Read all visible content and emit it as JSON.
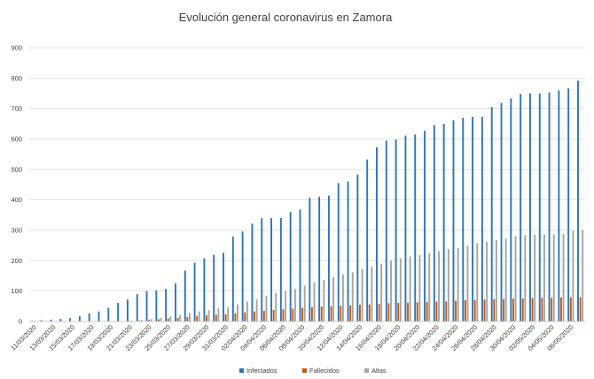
{
  "chart_data": {
    "type": "bar",
    "title": "Evolución general coronavirus en Zamora",
    "xlabel": "",
    "ylabel": "",
    "ylim": [
      0,
      900
    ],
    "yticks": [
      0,
      100,
      200,
      300,
      400,
      500,
      600,
      700,
      800,
      900
    ],
    "grid": true,
    "legend_position": "bottom",
    "categories": [
      "11/03/2020",
      "12/03/2020",
      "13/03/2020",
      "14/03/2020",
      "15/03/2020",
      "16/03/2020",
      "17/03/2020",
      "18/03/2020",
      "19/03/2020",
      "20/03/2020",
      "21/03/2020",
      "22/03/2020",
      "23/03/2020",
      "24/03/2020",
      "25/03/2020",
      "26/03/2020",
      "27/03/2020",
      "28/03/2020",
      "29/03/2020",
      "30/03/2020",
      "31/03/2020",
      "01/04/2020",
      "02/04/2020",
      "03/04/2020",
      "04/04/2020",
      "05/04/2020",
      "06/04/2020",
      "07/04/2020",
      "08/04/2020",
      "09/04/2020",
      "10/04/2020",
      "11/04/2020",
      "12/04/2020",
      "13/04/2020",
      "14/04/2020",
      "15/04/2020",
      "16/04/2020",
      "17/04/2020",
      "18/04/2020",
      "19/04/2020",
      "20/04/2020",
      "21/04/2020",
      "22/04/2020",
      "23/04/2020",
      "24/04/2020",
      "25/04/2020",
      "26/04/2020",
      "27/04/2020",
      "28/04/2020",
      "29/04/2020",
      "30/04/2020",
      "01/05/2020",
      "02/05/2020",
      "03/05/2020",
      "04/05/2020",
      "05/05/2020",
      "06/05/2020",
      "07/05/2020"
    ],
    "tick_labels": [
      "11/03/2020",
      "13/03/2020",
      "15/03/2020",
      "17/03/2020",
      "19/03/2020",
      "21/03/2020",
      "23/03/2020",
      "25/03/2020",
      "27/03/2020",
      "29/03/2020",
      "31/03/2020",
      "02/04/2020",
      "04/04/2020",
      "06/04/2020",
      "08/04/2020",
      "10/04/2020",
      "12/04/2020",
      "14/04/2020",
      "16/04/2020",
      "18/04/2020",
      "20/04/2020",
      "22/04/2020",
      "24/04/2020",
      "26/04/2020",
      "28/04/2020",
      "30/04/2020",
      "02/05/2020",
      "04/05/2020",
      "06/05/2020"
    ],
    "series": [
      {
        "name": "Infectados",
        "color": "#2e75b6",
        "values": [
          2,
          4,
          6,
          8,
          11,
          17,
          27,
          33,
          45,
          61,
          72,
          90,
          100,
          102,
          107,
          125,
          167,
          193,
          208,
          219,
          226,
          279,
          296,
          322,
          340,
          340,
          341,
          360,
          368,
          407,
          410,
          414,
          455,
          460,
          483,
          532,
          573,
          595,
          598,
          611,
          615,
          627,
          646,
          650,
          662,
          670,
          673,
          673,
          705,
          719,
          733,
          748,
          750,
          750,
          753,
          760,
          767,
          792
        ]
      },
      {
        "name": "Fallecidos",
        "color": "#c55a11",
        "values": [
          0,
          0,
          0,
          0,
          0,
          0,
          0,
          0,
          1,
          1,
          2,
          3,
          5,
          7,
          10,
          12,
          15,
          18,
          20,
          22,
          24,
          27,
          30,
          33,
          35,
          38,
          40,
          42,
          45,
          47,
          49,
          51,
          52,
          53,
          55,
          56,
          58,
          60,
          61,
          62,
          63,
          64,
          65,
          66,
          68,
          70,
          71,
          72,
          73,
          74,
          75,
          76,
          77,
          78,
          78,
          79,
          80,
          80
        ]
      },
      {
        "name": "Altas",
        "color": "#a5a5a5",
        "values": [
          0,
          0,
          0,
          0,
          0,
          0,
          0,
          0,
          0,
          0,
          2,
          5,
          8,
          12,
          17,
          22,
          28,
          33,
          37,
          43,
          47,
          56,
          65,
          72,
          84,
          93,
          100,
          107,
          118,
          129,
          136,
          146,
          155,
          162,
          172,
          180,
          190,
          200,
          208,
          214,
          218,
          224,
          231,
          238,
          242,
          249,
          257,
          262,
          268,
          272,
          280,
          284,
          285,
          286,
          287,
          288,
          298,
          300
        ]
      }
    ]
  }
}
